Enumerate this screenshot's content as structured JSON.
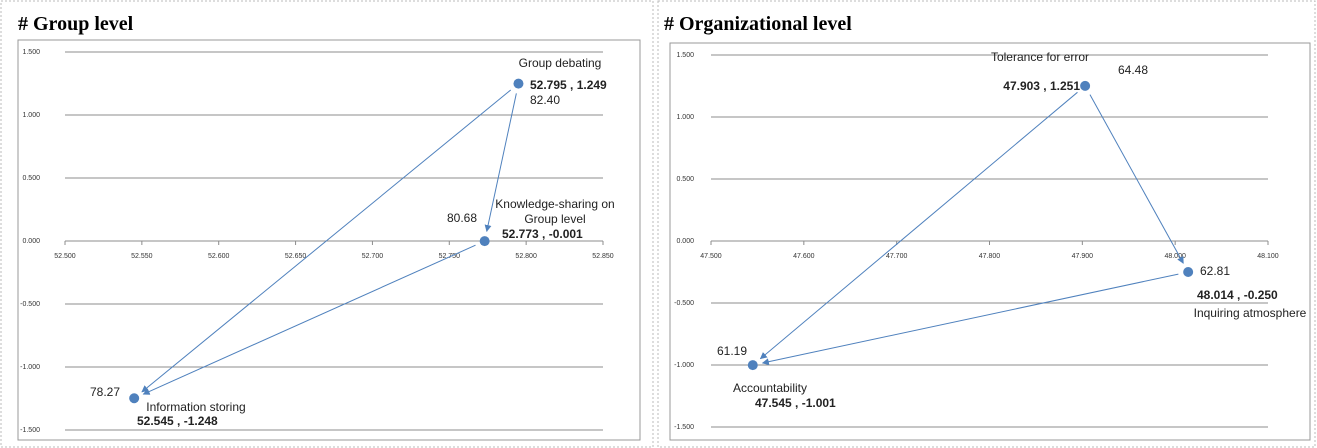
{
  "chart_data": [
    {
      "type": "scatter",
      "title": "# Group level",
      "point_labels": [
        "Group debating",
        "Knowledge-sharing on Group level",
        "Information storing"
      ],
      "x": [
        52.795,
        52.773,
        52.545
      ],
      "values": [
        1.249,
        -0.001,
        -1.248
      ],
      "value_labels": [
        "52.795 , 1.249",
        "52.773 , -0.001",
        "52.545 , -1.248"
      ],
      "scores": [
        "82.40",
        "80.68",
        "78.27"
      ],
      "arrows": [
        {
          "from": 0,
          "to": 1
        },
        {
          "from": 0,
          "to": 2
        },
        {
          "from": 1,
          "to": 2
        }
      ],
      "color": "#4f81bd",
      "xlim": [
        52.5,
        52.85
      ],
      "xticks": [
        {
          "value": 52.5,
          "label": "52.500"
        },
        {
          "value": 52.55,
          "label": "52.550"
        },
        {
          "value": 52.6,
          "label": "52.600"
        },
        {
          "value": 52.65,
          "label": "52.650"
        },
        {
          "value": 52.7,
          "label": "52.700"
        },
        {
          "value": 52.75,
          "label": "52.750"
        },
        {
          "value": 52.8,
          "label": "52.800"
        },
        {
          "value": 52.85,
          "label": "52.850"
        }
      ],
      "ylim": [
        -1.5,
        1.5
      ],
      "yticks": [
        {
          "value": 1.5,
          "label": "1.500"
        },
        {
          "value": 1,
          "label": "1.000"
        },
        {
          "value": 0.5,
          "label": "0.500"
        },
        {
          "value": 0,
          "label": "0.000"
        },
        {
          "value": -0.5,
          "label": "-0.500"
        },
        {
          "value": -1,
          "label": "-1.000"
        },
        {
          "value": -1.5,
          "label": "-1.500"
        }
      ],
      "grid": true
    },
    {
      "type": "scatter",
      "title": "# Organizational level",
      "point_labels": [
        "Tolerance for error",
        "Inquiring atmosphere",
        "Accountability"
      ],
      "x": [
        47.903,
        48.014,
        47.545
      ],
      "values": [
        1.251,
        -0.25,
        -1.001
      ],
      "value_labels": [
        "47.903 , 1.251",
        "48.014 , -0.250",
        "47.545 , -1.001"
      ],
      "scores": [
        "64.48",
        "62.81",
        "61.19"
      ],
      "arrows": [
        {
          "from": 0,
          "to": 1
        },
        {
          "from": 0,
          "to": 2
        },
        {
          "from": 1,
          "to": 2
        }
      ],
      "color": "#4f81bd",
      "xlim": [
        47.5,
        48.1
      ],
      "xticks": [
        {
          "value": 47.5,
          "label": "47.500"
        },
        {
          "value": 47.6,
          "label": "47.600"
        },
        {
          "value": 47.7,
          "label": "47.700"
        },
        {
          "value": 47.8,
          "label": "47.800"
        },
        {
          "value": 47.9,
          "label": "47.900"
        },
        {
          "value": 48,
          "label": "48.000"
        },
        {
          "value": 48.1,
          "label": "48.100"
        }
      ],
      "ylim": [
        -1.5,
        1.5
      ],
      "yticks": [
        {
          "value": 1.5,
          "label": "1.500"
        },
        {
          "value": 1,
          "label": "1.000"
        },
        {
          "value": 0.5,
          "label": "0.500"
        },
        {
          "value": 0,
          "label": "0.000"
        },
        {
          "value": -0.5,
          "label": "-0.500"
        },
        {
          "value": -1,
          "label": "-1.000"
        },
        {
          "value": -1.5,
          "label": "-1.500"
        }
      ],
      "grid": true
    }
  ]
}
